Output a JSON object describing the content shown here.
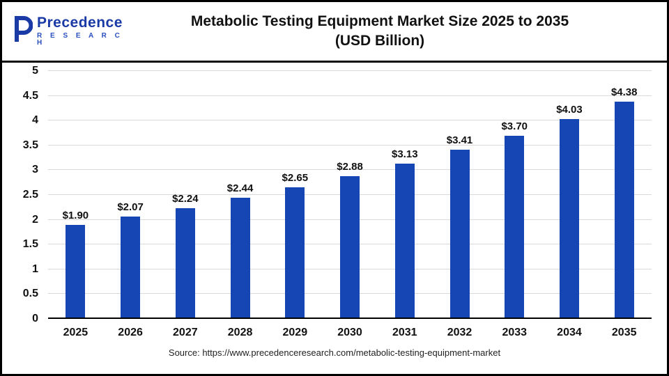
{
  "header": {
    "logo": {
      "brand": "Precedence",
      "sub": "R E S E A R C H"
    },
    "title_line1": "Metabolic Testing Equipment Market Size 2025 to 2035",
    "title_line2": "(USD Billion)"
  },
  "footer": {
    "source": "Source: https://www.precedenceresearch.com/metabolic-testing-equipment-market"
  },
  "chart_data": {
    "type": "bar",
    "title": "Metabolic Testing Equipment Market Size 2025 to 2035 (USD Billion)",
    "categories": [
      "2025",
      "2026",
      "2027",
      "2028",
      "2029",
      "2030",
      "2031",
      "2032",
      "2033",
      "2034",
      "2035"
    ],
    "values": [
      1.9,
      2.07,
      2.24,
      2.44,
      2.65,
      2.88,
      3.13,
      3.41,
      3.7,
      4.03,
      4.38
    ],
    "labels": [
      "$1.90",
      "$2.07",
      "$2.24",
      "$2.44",
      "$2.65",
      "$2.88",
      "$3.13",
      "$3.41",
      "$3.70",
      "$4.03",
      "$4.38"
    ],
    "xlabel": "",
    "ylabel": "",
    "ylim": [
      0,
      5
    ],
    "yticks": [
      0,
      0.5,
      1,
      1.5,
      2,
      2.5,
      3,
      3.5,
      4,
      4.5,
      5
    ],
    "bar_color": "#1646b4",
    "grid": true,
    "legend": "none"
  }
}
